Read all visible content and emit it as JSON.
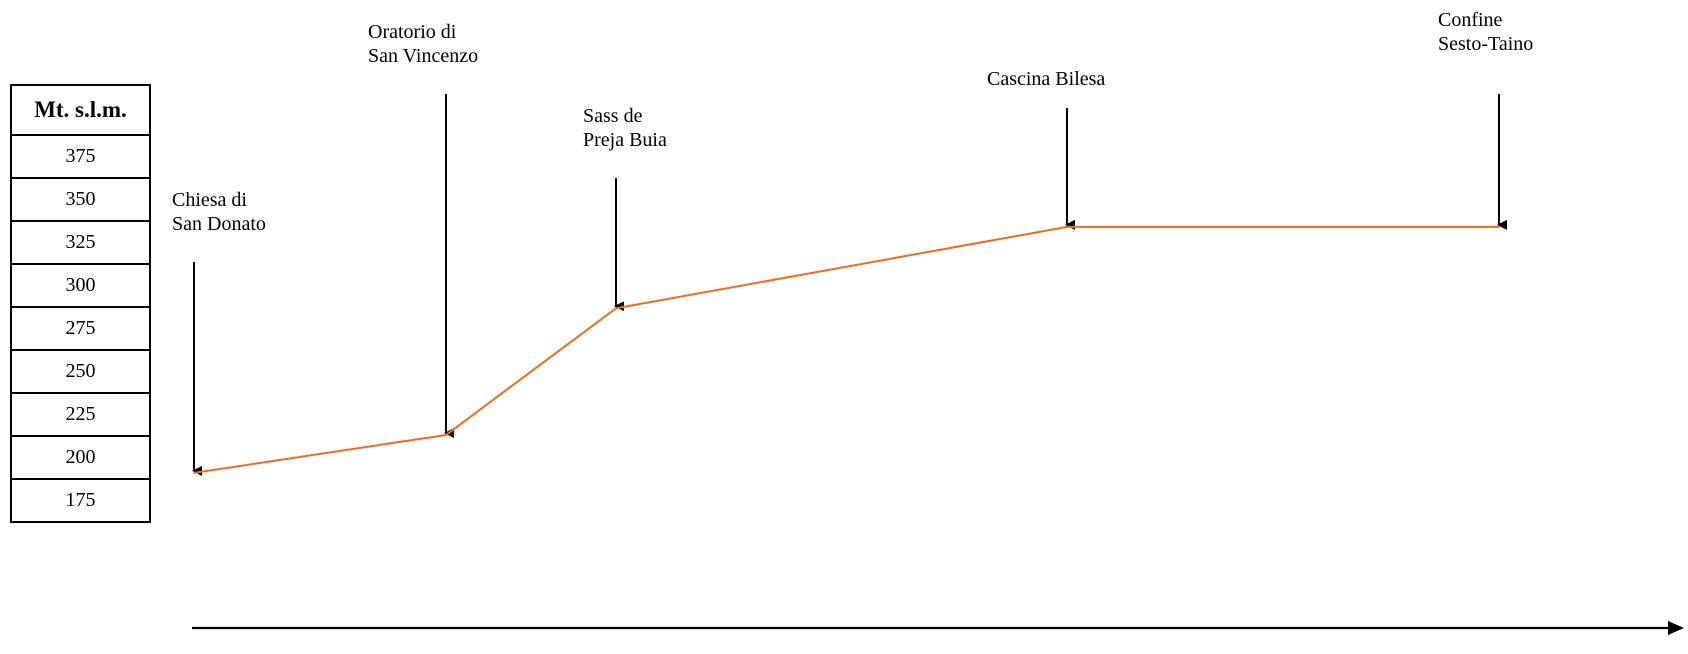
{
  "chart_data": {
    "type": "line",
    "ylabel": "Mt. s.l.m.",
    "y_ticks": [
      375,
      350,
      325,
      300,
      275,
      250,
      225,
      200,
      175
    ],
    "ylim": [
      175,
      375
    ],
    "line_color": "#F26B1D",
    "series": [
      {
        "points": [
          {
            "label": [
              "Chiesa di",
              "San Donato"
            ],
            "x": 0,
            "y": 207
          },
          {
            "label": [
              "Oratorio di",
              "San Vincenzo"
            ],
            "x": 1,
            "y": 227
          },
          {
            "label": [
              "Sass de",
              "Preja Buia"
            ],
            "x": 2,
            "y": 294
          },
          {
            "label": [
              "Cascina Bilesa"
            ],
            "x": 3,
            "y": 337
          },
          {
            "label": [
              "Confine",
              "Sesto-Taino"
            ],
            "x": 4,
            "y": 337
          }
        ]
      }
    ]
  }
}
